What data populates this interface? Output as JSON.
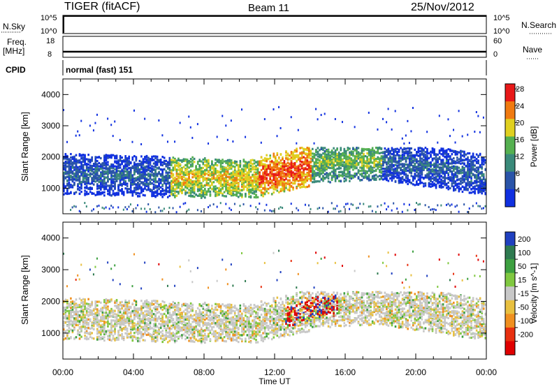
{
  "header": {
    "radar": "TIGER (fitACF)",
    "beam": "Beam 11",
    "date": "25/Nov/2012"
  },
  "strips": {
    "nsky": {
      "label": "N.Sky",
      "tick_top": "10^5",
      "tick_bottom": "10^0",
      "right_top": "10^5",
      "right_bottom": "10^0",
      "right_label": "N.Search"
    },
    "freq": {
      "label_line1": "Freq.",
      "label_line2": "[MHz]",
      "tick_top": "18",
      "tick_bottom": "8",
      "right_top": "60",
      "right_bottom": "0",
      "right_label": "Nave"
    },
    "cpid": {
      "label": "CPID",
      "value": "normal (fast) 151"
    }
  },
  "chart_data": [
    {
      "type": "heatmap",
      "title": "",
      "parameter": "Power",
      "xlabel": "Time UT",
      "ylabel": "Slant Range [km]",
      "colorbar_label": "Power [dB]",
      "colorbar_ticks": [
        "4",
        "8",
        "12",
        "16",
        "20",
        "24",
        "28"
      ],
      "colorbar_colors": [
        "#1030e0",
        "#2a54a8",
        "#3a8a7a",
        "#55b050",
        "#e0d020",
        "#f07a10",
        "#e81818"
      ],
      "x_ticks": [
        "00:00",
        "04:00",
        "08:00",
        "12:00",
        "16:00",
        "20:00",
        "00:00"
      ],
      "y_ticks": [
        "1000",
        "2000",
        "3000",
        "4000"
      ],
      "xlim_hours": [
        0,
        24
      ],
      "ylim_km": [
        180,
        4500
      ],
      "scatter_bands_km": [
        {
          "from_h": 0,
          "to_h": 6,
          "center_km": 1450,
          "level_db": 8
        },
        {
          "from_h": 6,
          "to_h": 11,
          "center_km": 1350,
          "level_db": 20
        },
        {
          "from_h": 11,
          "to_h": 14,
          "center_km": 1500,
          "level_db": 26
        },
        {
          "from_h": 14,
          "to_h": 18,
          "center_km": 1800,
          "level_db": 16
        },
        {
          "from_h": 18,
          "to_h": 24,
          "center_km": 1400,
          "level_db": 8
        }
      ]
    },
    {
      "type": "heatmap",
      "title": "",
      "parameter": "Velocity",
      "xlabel": "Time UT",
      "ylabel": "Slant Range [km]",
      "colorbar_label": "Velocity [m s^-1]",
      "colorbar_ticks": [
        "200",
        "100",
        "50",
        "15",
        "-15",
        "-50",
        "-100",
        "-200"
      ],
      "colorbar_colors": [
        "#2040c0",
        "#2e7a50",
        "#3da040",
        "#80c840",
        "#c8c8c8",
        "#e8c040",
        "#f09020",
        "#e83010",
        "#e00000"
      ],
      "x_ticks": [
        "00:00",
        "04:00",
        "08:00",
        "12:00",
        "16:00",
        "20:00",
        "00:00"
      ],
      "y_ticks": [
        "1000",
        "2000",
        "3000",
        "4000"
      ],
      "xlim_hours": [
        0,
        24
      ],
      "ylim_km": [
        180,
        4500
      ]
    }
  ]
}
